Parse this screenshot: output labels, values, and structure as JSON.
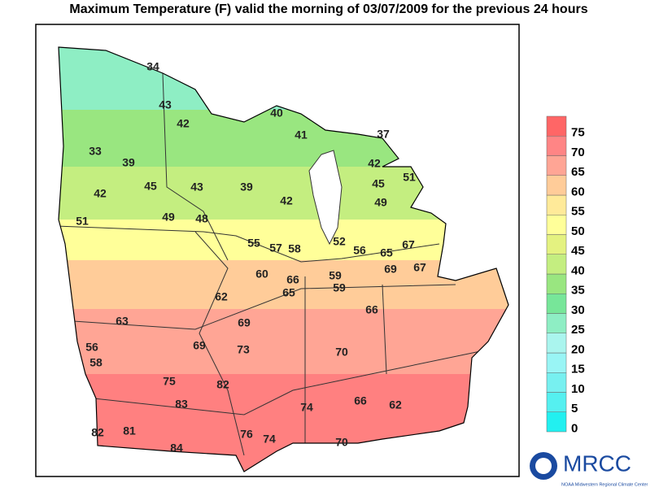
{
  "title": "Maximum Temperature (F) valid the morning of   03/07/2009  for the previous 24 hours",
  "legend": {
    "labels": [
      0,
      5,
      10,
      15,
      20,
      25,
      30,
      35,
      40,
      45,
      50,
      55,
      60,
      65,
      70,
      75
    ],
    "colors": [
      "#22f0f0",
      "#55f0f0",
      "#77f0f0",
      "#99f5f5",
      "#aaf5ee",
      "#8eeec4",
      "#77e699",
      "#99e680",
      "#c4ee80",
      "#e4f280",
      "#ffff99",
      "#ffea99",
      "#ffcc99",
      "#ffa595",
      "#ff8585",
      "#ff6666"
    ]
  },
  "stations": [
    34,
    43,
    42,
    40,
    41,
    37,
    33,
    39,
    45,
    43,
    39,
    42,
    42,
    45,
    49,
    51,
    42,
    49,
    48,
    51,
    55,
    57,
    58,
    52,
    56,
    67,
    65,
    69,
    67,
    60,
    66,
    59,
    62,
    65,
    59,
    66,
    63,
    69,
    56,
    58,
    69,
    73,
    70,
    75,
    82,
    83,
    74,
    66,
    62,
    82,
    81,
    84,
    76,
    74,
    70
  ],
  "logo": {
    "name": "MRCC",
    "subtitle": "NOAA Midwestern Regional Climate Center"
  }
}
